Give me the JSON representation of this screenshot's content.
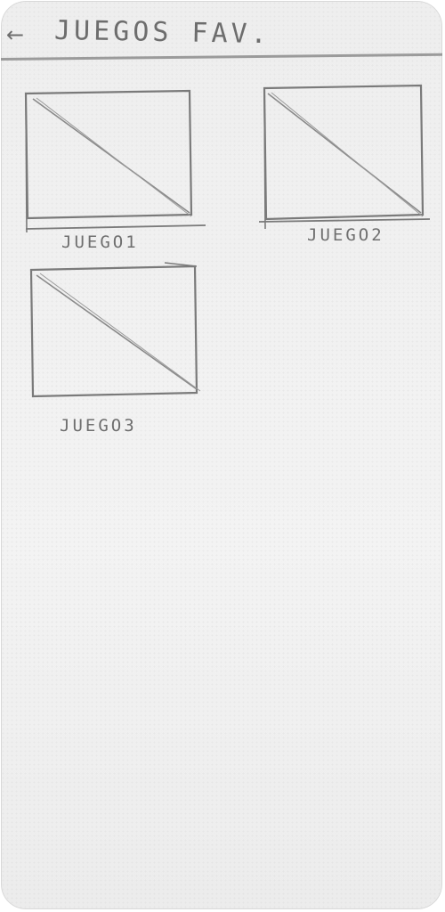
{
  "header": {
    "back_icon": "arrow-left-icon",
    "title": "JUEGOS FAV."
  },
  "games": [
    {
      "label": "JUEGO1",
      "icon": "image-placeholder-icon"
    },
    {
      "label": "JUEGO2",
      "icon": "image-placeholder-icon"
    },
    {
      "label": "JUEGO3",
      "icon": "image-placeholder-icon"
    }
  ],
  "colors": {
    "paper": "#efefef",
    "pencil": "#7a7a7a"
  }
}
